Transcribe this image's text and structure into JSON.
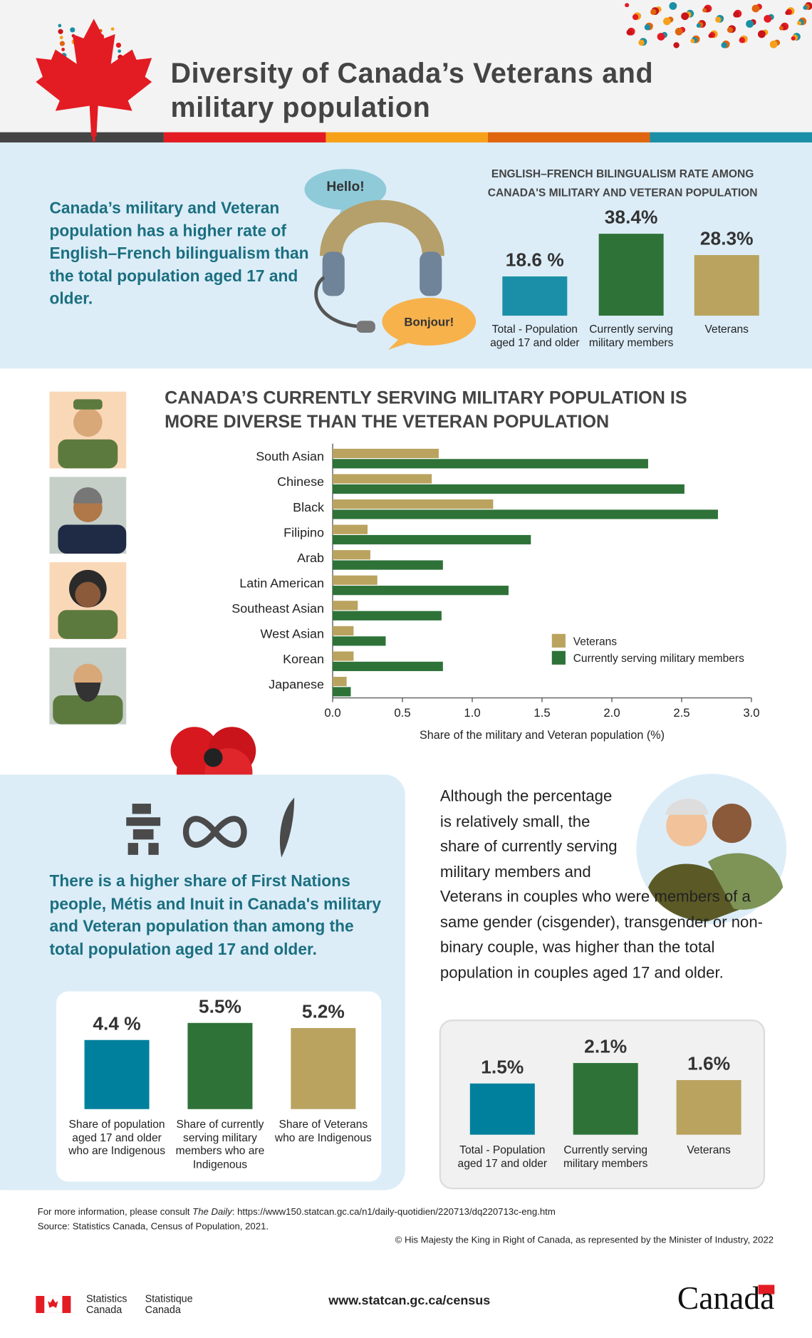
{
  "header": {
    "title": "Diversity of Canada’s Veterans and military population"
  },
  "sections": {
    "bilingual_text": "Canada’s military and Veteran population has a higher rate of English–French bilingualism than the total population aged 17 and older.",
    "hello": "Hello!",
    "bonjour": "Bonjour!",
    "indigenous_text": "There is a higher share of First Nations people, Métis and Inuit in Canada's military and Veteran population than among the total population aged 17 and older.",
    "couples_text": "Although the percentage is relatively small, the share of currently serving military members and Veterans in couples who were members of a same gender (cisgender), transgender or non-binary couple, was higher than the total population in couples aged 17 and older."
  },
  "chart_data": [
    {
      "type": "bar",
      "orientation": "vertical",
      "title": "ENGLISH–FRENCH BILINGUALISM RATE AMONG CANADA'S MILITARY AND VETERAN POPULATION",
      "categories": [
        "Total - Population aged 17 and older",
        "Currently serving military members",
        "Veterans"
      ],
      "values": [
        18.6,
        38.4,
        28.3
      ],
      "value_labels": [
        "18.6 %",
        "38.4%",
        "28.3%"
      ],
      "colors": [
        "#1b8fa8",
        "#2e7238",
        "#b9a35f"
      ]
    },
    {
      "type": "bar",
      "orientation": "horizontal",
      "title": "CANADA’S CURRENTLY SERVING MILITARY POPULATION IS MORE DIVERSE THAN THE VETERAN POPULATION",
      "categories": [
        "South Asian",
        "Chinese",
        "Black",
        "Filipino",
        "Arab",
        "Latin American",
        "Southeast Asian",
        "West Asian",
        "Korean",
        "Japanese"
      ],
      "series": [
        {
          "name": "Veterans",
          "color": "#b9a35f",
          "values": [
            0.76,
            0.71,
            1.15,
            0.25,
            0.27,
            0.32,
            0.18,
            0.15,
            0.15,
            0.1
          ]
        },
        {
          "name": "Currently serving military members",
          "color": "#2e7238",
          "values": [
            2.26,
            2.52,
            2.76,
            1.42,
            0.79,
            1.26,
            0.78,
            0.38,
            0.79,
            0.13
          ]
        }
      ],
      "xlim": [
        0,
        3
      ],
      "xticks": [
        {
          "value": 0,
          "label": "0.0"
        },
        0.5,
        {
          "value": 1,
          "label": "1.0"
        },
        1.5,
        {
          "value": 2,
          "label": "2.0"
        },
        2.5,
        {
          "value": 3,
          "label": "3.0"
        }
      ],
      "x_label": "Share of the military and Veteran population (%)",
      "legend": "right"
    },
    {
      "type": "bar",
      "orientation": "vertical",
      "categories": [
        "Share of population aged 17 and older who are Indigenous",
        "Share of currently serving military members who are Indigenous",
        "Share of Veterans who are Indigenous"
      ],
      "values": [
        4.4,
        5.5,
        5.2
      ],
      "value_labels": [
        "4.4 %",
        "5.5%",
        "5.2%"
      ],
      "colors": [
        "#00809d",
        "#2e7238",
        "#b9a35f"
      ]
    },
    {
      "type": "bar",
      "orientation": "vertical",
      "categories": [
        "Total - Population aged 17 and older",
        "Currently serving military members",
        "Veterans"
      ],
      "values": [
        1.5,
        2.1,
        1.6
      ],
      "value_labels": [
        "1.5%",
        "2.1%",
        "1.6%"
      ],
      "colors": [
        "#00809d",
        "#2e7238",
        "#b9a35f"
      ]
    }
  ],
  "footer": {
    "info_prefix": "For more information, please consult ",
    "info_daily": "The Daily",
    "info_url": ": https://www150.statcan.gc.ca/n1/daily-quotidien/220713/dq220713c-eng.htm",
    "source": "Source: Statistics Canada, Census of Population, 2021.",
    "copyright": "© His Majesty the King in Right of Canada, as represented by the Minister of Industry, 2022",
    "statcan_en": "Statistics Canada",
    "statcan_fr": "Statistique Canada",
    "url": "www.statcan.gc.ca/census",
    "wordmark": "Canada"
  }
}
